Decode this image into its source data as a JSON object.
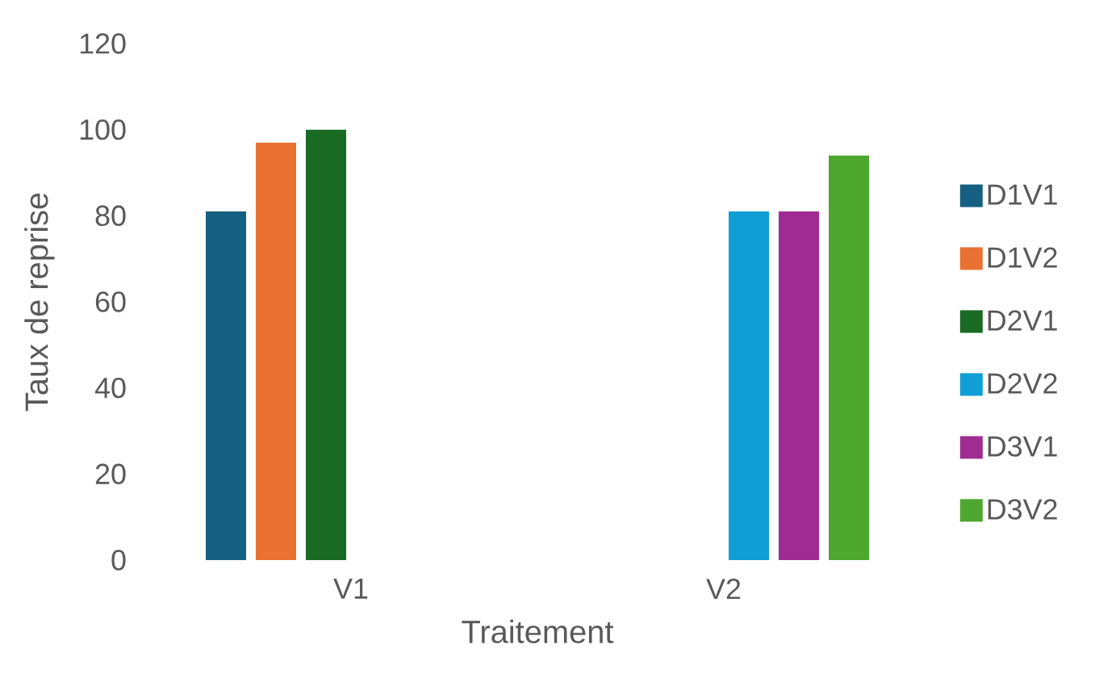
{
  "chart_data": {
    "type": "bar",
    "categories": [
      "V1",
      "V2"
    ],
    "xlabel": "Traitement",
    "ylabel": "Taux de reprise",
    "ylim": [
      0,
      120
    ],
    "yticks": [
      0,
      20,
      40,
      60,
      80,
      100,
      120
    ],
    "legend": "right",
    "series": [
      {
        "name": "D1V1",
        "color": "#156082",
        "values": [
          81,
          null
        ]
      },
      {
        "name": "D1V2",
        "color": "#e97132",
        "values": [
          97,
          null
        ]
      },
      {
        "name": "D2V1",
        "color": "#196b24",
        "values": [
          100,
          null
        ]
      },
      {
        "name": "D2V2",
        "color": "#0f9ed5",
        "values": [
          null,
          81
        ]
      },
      {
        "name": "D3V1",
        "color": "#a02b93",
        "values": [
          null,
          81
        ]
      },
      {
        "name": "D3V2",
        "color": "#4ea72e",
        "values": [
          null,
          94
        ]
      }
    ]
  }
}
